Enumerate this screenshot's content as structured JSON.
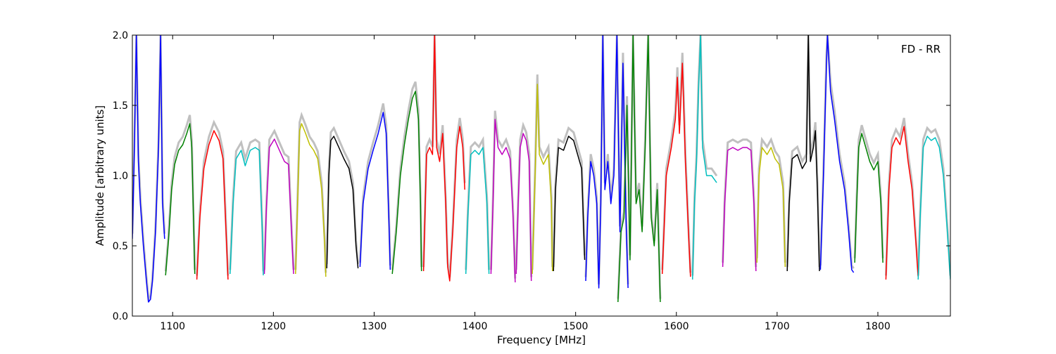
{
  "chart_data": {
    "type": "line",
    "annotation": "FD - RR",
    "xlabel": "Frequency [MHz]",
    "ylabel": "Amplitude [arbitrary units]",
    "xlim": [
      1060,
      1872
    ],
    "ylim": [
      0.0,
      2.0
    ],
    "xticks": [
      1100,
      1200,
      1300,
      1400,
      1500,
      1600,
      1700,
      1800
    ],
    "yticks": [
      0.0,
      0.5,
      1.0,
      1.5,
      2.0
    ],
    "xtick_labels": [
      "1100",
      "1200",
      "1300",
      "1400",
      "1500",
      "1600",
      "1700",
      "1800"
    ],
    "ytick_labels": [
      "0.0",
      "0.5",
      "1.0",
      "1.5",
      "2.0"
    ],
    "grid": false,
    "background_color": "#c0c0c0",
    "series": [
      {
        "color": "#0000ff",
        "points": [
          [
            1060,
            0.55
          ],
          [
            1062,
            1.2
          ],
          [
            1064,
            2.0
          ],
          [
            1066,
            1.1
          ],
          [
            1068,
            0.8
          ],
          [
            1071,
            0.5
          ],
          [
            1074,
            0.25
          ],
          [
            1076,
            0.1
          ],
          [
            1078,
            0.12
          ],
          [
            1080,
            0.25
          ],
          [
            1083,
            0.6
          ],
          [
            1086,
            1.2
          ],
          [
            1088,
            2.0
          ],
          [
            1090,
            0.8
          ],
          [
            1092,
            0.55
          ]
        ]
      },
      {
        "color": "#008000",
        "points": [
          [
            1093,
            0.29
          ],
          [
            1096,
            0.55
          ],
          [
            1099,
            0.9
          ],
          [
            1102,
            1.08
          ],
          [
            1106,
            1.18
          ],
          [
            1110,
            1.22
          ],
          [
            1114,
            1.3
          ],
          [
            1117,
            1.37
          ],
          [
            1119,
            1.2
          ],
          [
            1121,
            0.6
          ],
          [
            1122,
            0.3
          ]
        ]
      },
      {
        "color": "#ff0000",
        "points": [
          [
            1124,
            0.26
          ],
          [
            1127,
            0.7
          ],
          [
            1131,
            1.05
          ],
          [
            1136,
            1.22
          ],
          [
            1141,
            1.32
          ],
          [
            1146,
            1.25
          ],
          [
            1150,
            1.12
          ],
          [
            1153,
            0.6
          ],
          [
            1155,
            0.26
          ]
        ]
      },
      {
        "color": "#00bfbf",
        "points": [
          [
            1157,
            0.3
          ],
          [
            1160,
            0.8
          ],
          [
            1163,
            1.12
          ],
          [
            1168,
            1.18
          ],
          [
            1172,
            1.07
          ],
          [
            1177,
            1.18
          ],
          [
            1182,
            1.2
          ],
          [
            1186,
            1.18
          ],
          [
            1189,
            0.6
          ],
          [
            1190,
            0.29
          ]
        ]
      },
      {
        "color": "#bf00bf",
        "points": [
          [
            1191,
            0.3
          ],
          [
            1193,
            0.75
          ],
          [
            1196,
            1.2
          ],
          [
            1201,
            1.26
          ],
          [
            1206,
            1.18
          ],
          [
            1211,
            1.1
          ],
          [
            1215,
            1.08
          ],
          [
            1218,
            0.6
          ],
          [
            1220,
            0.3
          ]
        ]
      },
      {
        "color": "#bfbf00",
        "points": [
          [
            1222,
            0.3
          ],
          [
            1224,
            0.8
          ],
          [
            1226,
            1.32
          ],
          [
            1228,
            1.37
          ],
          [
            1232,
            1.3
          ],
          [
            1236,
            1.22
          ],
          [
            1240,
            1.18
          ],
          [
            1244,
            1.12
          ],
          [
            1248,
            0.9
          ],
          [
            1251,
            0.5
          ],
          [
            1252,
            0.28
          ]
        ]
      },
      {
        "color": "#000000",
        "points": [
          [
            1253,
            0.34
          ],
          [
            1255,
            1.0
          ],
          [
            1257,
            1.25
          ],
          [
            1260,
            1.28
          ],
          [
            1265,
            1.2
          ],
          [
            1270,
            1.12
          ],
          [
            1275,
            1.05
          ],
          [
            1279,
            0.9
          ],
          [
            1282,
            0.5
          ],
          [
            1284,
            0.34
          ]
        ]
      },
      {
        "color": "#0000ff",
        "points": [
          [
            1286,
            0.35
          ],
          [
            1289,
            0.8
          ],
          [
            1294,
            1.05
          ],
          [
            1299,
            1.18
          ],
          [
            1304,
            1.3
          ],
          [
            1309,
            1.45
          ],
          [
            1312,
            1.3
          ],
          [
            1315,
            0.6
          ],
          [
            1316,
            0.33
          ]
        ]
      },
      {
        "color": "#008000",
        "points": [
          [
            1318,
            0.3
          ],
          [
            1322,
            0.6
          ],
          [
            1326,
            1.0
          ],
          [
            1330,
            1.22
          ],
          [
            1334,
            1.4
          ],
          [
            1338,
            1.55
          ],
          [
            1341,
            1.6
          ],
          [
            1344,
            1.4
          ],
          [
            1346,
            0.8
          ],
          [
            1347,
            0.32
          ]
        ]
      },
      {
        "color": "#ff0000",
        "points": [
          [
            1349,
            0.32
          ],
          [
            1352,
            1.15
          ],
          [
            1355,
            1.2
          ],
          [
            1358,
            1.15
          ],
          [
            1360,
            2.0
          ],
          [
            1362,
            1.2
          ],
          [
            1365,
            1.1
          ],
          [
            1368,
            1.3
          ],
          [
            1371,
            0.8
          ],
          [
            1373,
            0.35
          ],
          [
            1375,
            0.25
          ],
          [
            1378,
            0.6
          ],
          [
            1382,
            1.2
          ],
          [
            1385,
            1.35
          ],
          [
            1388,
            1.2
          ],
          [
            1390,
            0.9
          ]
        ]
      },
      {
        "color": "#00bfbf",
        "points": [
          [
            1391,
            0.3
          ],
          [
            1393,
            0.7
          ],
          [
            1396,
            1.15
          ],
          [
            1400,
            1.18
          ],
          [
            1404,
            1.15
          ],
          [
            1408,
            1.2
          ],
          [
            1412,
            0.8
          ],
          [
            1414,
            0.3
          ]
        ]
      },
      {
        "color": "#bf00bf",
        "points": [
          [
            1416,
            0.3
          ],
          [
            1418,
            0.8
          ],
          [
            1420,
            1.4
          ],
          [
            1423,
            1.2
          ],
          [
            1427,
            1.15
          ],
          [
            1431,
            1.2
          ],
          [
            1435,
            1.12
          ],
          [
            1438,
            0.7
          ],
          [
            1440,
            0.24
          ]
        ]
      },
      {
        "color": "#bf00bf",
        "points": [
          [
            1441,
            0.3
          ],
          [
            1443,
            0.8
          ],
          [
            1445,
            1.2
          ],
          [
            1448,
            1.3
          ],
          [
            1451,
            1.25
          ],
          [
            1454,
            1.1
          ],
          [
            1456,
            0.25
          ]
        ]
      },
      {
        "color": "#bfbf00",
        "points": [
          [
            1457,
            0.3
          ],
          [
            1460,
            1.05
          ],
          [
            1462,
            1.65
          ],
          [
            1464,
            1.15
          ],
          [
            1468,
            1.08
          ],
          [
            1473,
            1.15
          ],
          [
            1476,
            0.8
          ],
          [
            1477,
            0.32
          ]
        ]
      },
      {
        "color": "#000000",
        "points": [
          [
            1478,
            0.32
          ],
          [
            1480,
            0.9
          ],
          [
            1483,
            1.2
          ],
          [
            1488,
            1.18
          ],
          [
            1493,
            1.28
          ],
          [
            1498,
            1.25
          ],
          [
            1502,
            1.15
          ],
          [
            1506,
            1.05
          ],
          [
            1509,
            0.4
          ]
        ]
      },
      {
        "color": "#0000ff",
        "points": [
          [
            1510,
            0.25
          ],
          [
            1512,
            0.7
          ],
          [
            1515,
            1.1
          ],
          [
            1518,
            1.0
          ],
          [
            1521,
            0.8
          ],
          [
            1523,
            0.2
          ],
          [
            1525,
            0.8
          ],
          [
            1527,
            2.0
          ],
          [
            1529,
            0.9
          ],
          [
            1532,
            1.1
          ],
          [
            1535,
            0.8
          ],
          [
            1538,
            1.0
          ],
          [
            1541,
            2.0
          ],
          [
            1544,
            0.6
          ],
          [
            1547,
            1.8
          ],
          [
            1550,
            0.7
          ],
          [
            1552,
            0.2
          ]
        ]
      },
      {
        "color": "#008000",
        "points": [
          [
            1542,
            0.1
          ],
          [
            1545,
            0.6
          ],
          [
            1548,
            0.7
          ],
          [
            1551,
            1.5
          ],
          [
            1554,
            0.4
          ],
          [
            1557,
            2.0
          ],
          [
            1560,
            0.8
          ],
          [
            1563,
            0.9
          ],
          [
            1566,
            0.6
          ],
          [
            1569,
            1.2
          ],
          [
            1572,
            2.0
          ],
          [
            1575,
            0.7
          ],
          [
            1578,
            0.5
          ],
          [
            1581,
            0.9
          ],
          [
            1584,
            0.1
          ]
        ]
      },
      {
        "color": "#ff0000",
        "points": [
          [
            1586,
            0.3
          ],
          [
            1590,
            1.0
          ],
          [
            1595,
            1.2
          ],
          [
            1599,
            1.4
          ],
          [
            1601,
            1.7
          ],
          [
            1603,
            1.3
          ],
          [
            1606,
            1.8
          ],
          [
            1609,
            1.1
          ],
          [
            1612,
            0.6
          ],
          [
            1614,
            0.28
          ]
        ]
      },
      {
        "color": "#00bfbf",
        "points": [
          [
            1616,
            0.26
          ],
          [
            1618,
            0.8
          ],
          [
            1620,
            1.1
          ],
          [
            1622,
            1.6
          ],
          [
            1624,
            2.0
          ],
          [
            1626,
            1.2
          ],
          [
            1630,
            1.0
          ],
          [
            1635,
            1.0
          ],
          [
            1640,
            0.95
          ]
        ]
      },
      {
        "color": "#bf00bf",
        "points": [
          [
            1646,
            0.35
          ],
          [
            1648,
            0.8
          ],
          [
            1651,
            1.18
          ],
          [
            1656,
            1.2
          ],
          [
            1661,
            1.18
          ],
          [
            1666,
            1.2
          ],
          [
            1670,
            1.2
          ],
          [
            1674,
            1.18
          ],
          [
            1677,
            0.8
          ],
          [
            1679,
            0.32
          ]
        ]
      },
      {
        "color": "#bfbf00",
        "points": [
          [
            1680,
            0.38
          ],
          [
            1682,
            1.0
          ],
          [
            1685,
            1.2
          ],
          [
            1690,
            1.15
          ],
          [
            1694,
            1.2
          ],
          [
            1698,
            1.12
          ],
          [
            1702,
            1.08
          ],
          [
            1706,
            0.9
          ],
          [
            1708,
            0.35
          ]
        ]
      },
      {
        "color": "#000000",
        "points": [
          [
            1710,
            0.32
          ],
          [
            1712,
            0.8
          ],
          [
            1715,
            1.12
          ],
          [
            1720,
            1.15
          ],
          [
            1725,
            1.05
          ],
          [
            1729,
            1.1
          ],
          [
            1731,
            2.0
          ],
          [
            1733,
            1.1
          ],
          [
            1736,
            1.2
          ],
          [
            1738,
            1.32
          ],
          [
            1740,
            0.9
          ],
          [
            1742,
            0.32
          ]
        ]
      },
      {
        "color": "#0000ff",
        "points": [
          [
            1743,
            0.33
          ],
          [
            1746,
            1.0
          ],
          [
            1749,
            1.8
          ],
          [
            1750,
            2.0
          ],
          [
            1753,
            1.6
          ],
          [
            1757,
            1.4
          ],
          [
            1762,
            1.1
          ],
          [
            1767,
            0.9
          ],
          [
            1771,
            0.6
          ],
          [
            1774,
            0.33
          ],
          [
            1776,
            0.31
          ]
        ]
      },
      {
        "color": "#008000",
        "points": [
          [
            1777,
            0.38
          ],
          [
            1779,
            0.8
          ],
          [
            1781,
            1.2
          ],
          [
            1784,
            1.3
          ],
          [
            1788,
            1.2
          ],
          [
            1792,
            1.1
          ],
          [
            1796,
            1.04
          ],
          [
            1800,
            1.1
          ],
          [
            1803,
            0.8
          ],
          [
            1805,
            0.38
          ]
        ]
      },
      {
        "color": "#ff0000",
        "points": [
          [
            1808,
            0.26
          ],
          [
            1811,
            0.9
          ],
          [
            1814,
            1.2
          ],
          [
            1818,
            1.27
          ],
          [
            1822,
            1.22
          ],
          [
            1826,
            1.35
          ],
          [
            1830,
            1.1
          ],
          [
            1834,
            0.9
          ],
          [
            1838,
            0.5
          ],
          [
            1840,
            0.28
          ]
        ]
      },
      {
        "color": "#00bfbf",
        "points": [
          [
            1840,
            0.26
          ],
          [
            1842,
            0.7
          ],
          [
            1845,
            1.2
          ],
          [
            1849,
            1.28
          ],
          [
            1853,
            1.25
          ],
          [
            1857,
            1.27
          ],
          [
            1861,
            1.2
          ],
          [
            1865,
            1.0
          ],
          [
            1869,
            0.6
          ],
          [
            1872,
            0.26
          ]
        ]
      }
    ]
  }
}
